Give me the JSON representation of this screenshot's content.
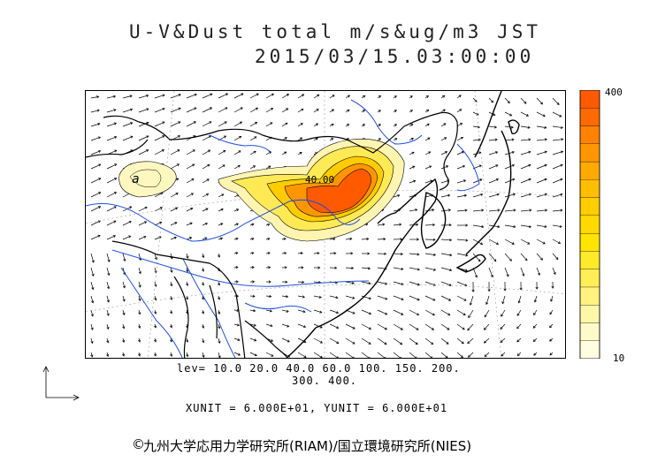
{
  "title": {
    "line1": "U-V&Dust total m/s&ug/m3 JST",
    "line2": "2015/03/15.03:00:00"
  },
  "colorbar": {
    "max_label": "400",
    "min_label": "10",
    "colors": [
      "#ffffe0",
      "#fffbc8",
      "#fff7a8",
      "#fff27e",
      "#ffee55",
      "#ffea2a",
      "#ffe400",
      "#ffd900",
      "#ffcc00",
      "#ffbe00",
      "#ffaa00",
      "#ff9600",
      "#ff8200",
      "#ff6a00",
      "#ff5a00"
    ]
  },
  "levels": {
    "line1": "lev= 10.0 20.0 40.0 60.0 100. 150. 200.",
    "line2": "300. 400."
  },
  "units": "XUNIT = 6.000E+01, YUNIT = 6.000E+01",
  "contour_label": "40.00",
  "low_label": "a",
  "copyright": "九州大学応用力学研究所(RIAM)/国立環境研究所(NIES)",
  "copyright_icon": "copyright-icon",
  "vector_legend_icon": "vector-axes-icon"
}
